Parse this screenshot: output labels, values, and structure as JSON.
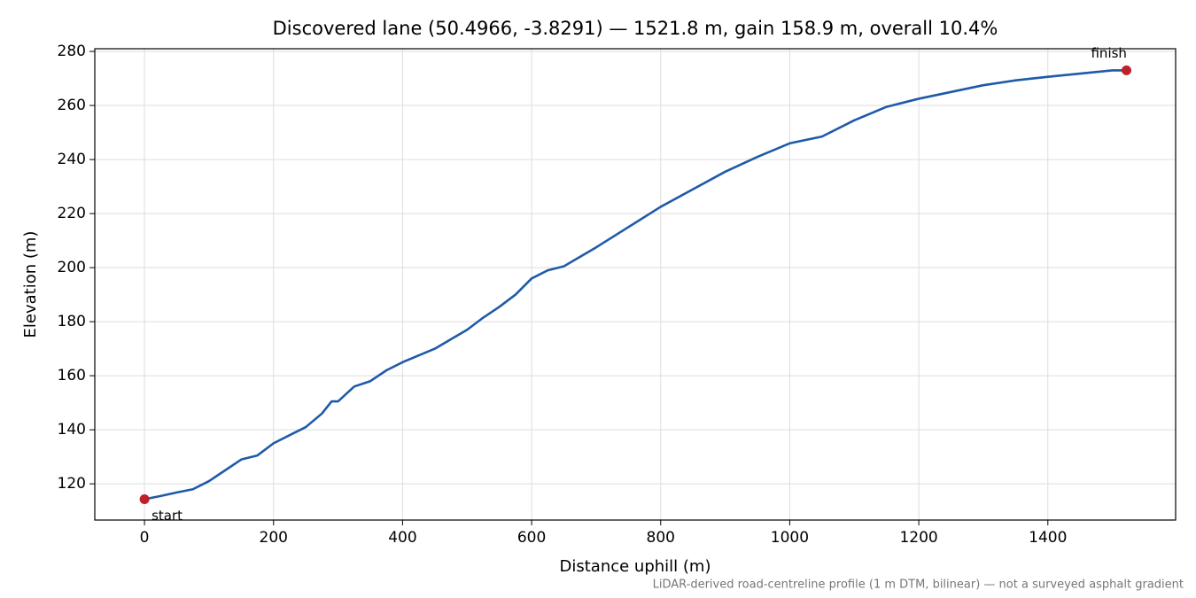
{
  "chart_data": {
    "type": "line",
    "title": "Discovered lane (50.4966, -3.8291) — 1521.8 m, gain 158.9 m, overall 10.4%",
    "x_label": "Distance uphill (m)",
    "y_label": "Elevation (m)",
    "footnote": "LiDAR-derived road-centreline profile (1 m DTM, bilinear) — not a surveyed asphalt gradient",
    "x": [
      0,
      25,
      50,
      75,
      100,
      125,
      150,
      175,
      200,
      225,
      250,
      275,
      290,
      300,
      325,
      350,
      375,
      400,
      425,
      450,
      475,
      500,
      525,
      550,
      575,
      600,
      625,
      650,
      675,
      700,
      750,
      800,
      850,
      900,
      950,
      1000,
      1050,
      1100,
      1150,
      1200,
      1250,
      1300,
      1350,
      1400,
      1450,
      1500,
      1521.8
    ],
    "series": [
      {
        "name": "Elevation",
        "color": "#1f5aa8",
        "values": [
          114.3,
          115.5,
          116.8,
          118,
          121,
          125,
          129,
          130.5,
          135,
          138,
          141,
          146,
          150.5,
          150.5,
          156,
          158,
          162,
          165,
          167.5,
          170,
          173.5,
          177,
          181.5,
          185.5,
          190,
          196,
          199,
          200.5,
          204,
          207.5,
          215,
          222.5,
          229,
          235.5,
          241,
          246,
          248.5,
          254.5,
          259.5,
          262.5,
          265,
          267.5,
          269.3,
          270.6,
          271.8,
          273,
          273
        ]
      }
    ],
    "markers": [
      {
        "label": "start",
        "x": 0,
        "y": 114.3,
        "color": "#c0202a"
      },
      {
        "label": "finish",
        "x": 1521.8,
        "y": 273,
        "color": "#c0202a"
      }
    ],
    "xlim": [
      -77,
      1598
    ],
    "ylim": [
      106.6,
      281
    ],
    "xticks": [
      0,
      200,
      400,
      600,
      800,
      1000,
      1200,
      1400
    ],
    "yticks": [
      120,
      140,
      160,
      180,
      200,
      220,
      240,
      260,
      280
    ],
    "grid": true
  }
}
